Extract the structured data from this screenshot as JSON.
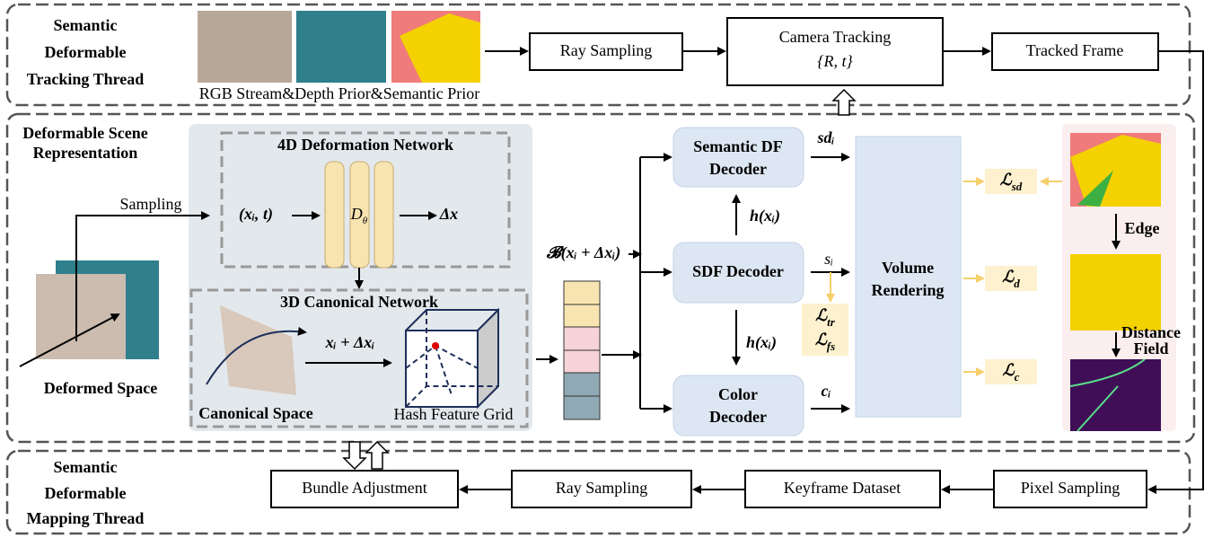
{
  "tracking_thread": {
    "title": [
      "Semantic",
      "Deformable",
      "Tracking Thread"
    ],
    "caption": "RGB Stream&Depth Prior&Semantic Prior",
    "ray_sampling": "Ray Sampling",
    "camera_tracking": {
      "title": "Camera Tracking",
      "pose": "{R, t}"
    },
    "tracked_frame": "Tracked Frame"
  },
  "scene": {
    "title": [
      "Deformable Scene",
      "Representation"
    ],
    "sampling": "Sampling",
    "deformed_space": "Deformed Space",
    "deformation_network": {
      "title": "4D Deformation Network",
      "input": "(xᵢ, t)",
      "network": {
        "symbol": "D",
        "sub": "θ"
      },
      "output": "Δx"
    },
    "canonical_network": {
      "title": "3D Canonical Network",
      "space": "Canonical Space",
      "mapping": "xᵢ + Δxᵢ",
      "grid": "Hash Feature Grid"
    },
    "feature": "𝓑(xᵢ + Δxᵢ)",
    "decoders": {
      "semantic": [
        "Semantic DF",
        "Decoder"
      ],
      "sdf": "SDF Decoder",
      "color": [
        "Color",
        "Decoder"
      ]
    },
    "outputs": {
      "sd": "sdᵢ",
      "s": "sᵢ",
      "c": "cᵢ",
      "h_up": "h(xᵢ)",
      "h_down": "h(xᵢ)"
    },
    "volume_rendering": [
      "Volume",
      "Rendering"
    ],
    "losses": {
      "tr": {
        "symbol": "ℒ",
        "sub": "tr"
      },
      "fs": {
        "symbol": "ℒ",
        "sub": "fs"
      },
      "sd": {
        "symbol": "ℒ",
        "sub": "sd"
      },
      "d": {
        "symbol": "ℒ",
        "sub": "d"
      },
      "c": {
        "symbol": "ℒ",
        "sub": "c"
      }
    },
    "edge": "Edge",
    "distance_field": [
      "Distance",
      "Field"
    ]
  },
  "mapping_thread": {
    "title": [
      "Semantic",
      "Deformable",
      "Mapping Thread"
    ],
    "bundle_adjustment": "Bundle Adjustment",
    "ray_sampling": "Ray Sampling",
    "keyframe_dataset": "Keyframe Dataset",
    "pixel_sampling": "Pixel Sampling"
  }
}
